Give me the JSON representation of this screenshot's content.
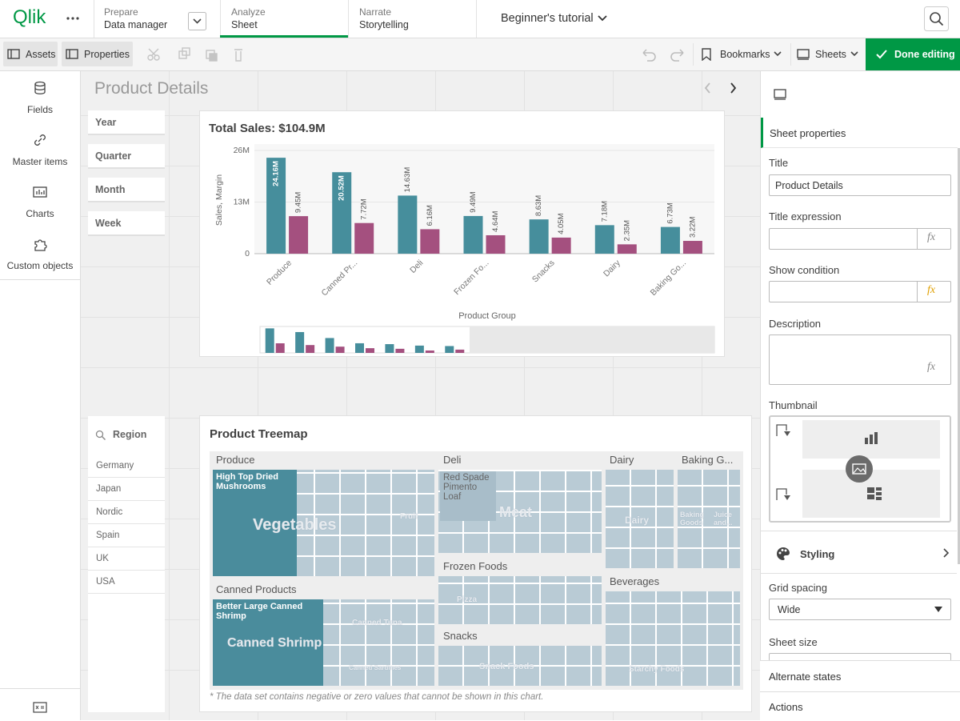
{
  "topbar": {
    "logo": "Qlik",
    "tabs": [
      {
        "label": "Prepare",
        "sub": "Data manager"
      },
      {
        "label": "Analyze",
        "sub": "Sheet"
      },
      {
        "label": "Narrate",
        "sub": "Storytelling"
      }
    ],
    "app_title": "Beginner's tutorial"
  },
  "toolbar": {
    "assets": "Assets",
    "properties": "Properties",
    "bookmarks": "Bookmarks",
    "sheets": "Sheets",
    "done": "Done editing"
  },
  "left_panel": {
    "items": [
      "Fields",
      "Master items",
      "Charts",
      "Custom objects"
    ]
  },
  "sheet": {
    "title": "Product Details",
    "filters": [
      "Year",
      "Quarter",
      "Month",
      "Week"
    ],
    "region": {
      "title": "Region",
      "values": [
        "Germany",
        "Japan",
        "Nordic",
        "Spain",
        "UK",
        "USA"
      ]
    },
    "chart_data": {
      "type": "bar",
      "title": "Total Sales: $104.9M",
      "y_label": "Sales, Margin",
      "x_label": "Product Group",
      "categories": [
        "Produce",
        "Canned Pr...",
        "Deli",
        "Frozen Fo...",
        "Snacks",
        "Dairy",
        "Baking Go..."
      ],
      "series": [
        {
          "color": "#468e9c",
          "values": [
            24160000,
            20520000,
            14630000,
            9490000,
            8630000,
            7180000,
            6730000
          ],
          "value_labels": [
            "24.16M",
            "20.52M",
            "14.63M",
            "9.49M",
            "8.63M",
            "7.18M",
            "6.73M"
          ]
        },
        {
          "color": "#a4507f",
          "values": [
            9450000,
            7720000,
            6160000,
            4640000,
            4050000,
            2350000,
            3220000
          ],
          "value_labels": [
            "9.45M",
            "7.72M",
            "6.16M",
            "4.64M",
            "4.05M",
            "2.35M",
            "3.22M"
          ]
        }
      ],
      "ylim": [
        0,
        26000000
      ],
      "yticks": [
        0,
        {
          "value": 13000000,
          "label": "13M"
        },
        {
          "value": 26000000,
          "label": "26M"
        }
      ],
      "grid": true
    },
    "treemap": {
      "title": "Product Treemap",
      "groups": [
        {
          "name": "Produce",
          "items": [
            "High Top Dried Mushrooms",
            "Vegetables",
            "Fruit"
          ]
        },
        {
          "name": "Deli",
          "items": [
            "Red Spade Pimento Loaf",
            "Meat"
          ]
        },
        {
          "name": "Dairy",
          "items": [
            "Dairy"
          ]
        },
        {
          "name": "Baking G...",
          "items": [
            "Baking Goods",
            "Juice and..."
          ]
        },
        {
          "name": "Canned Products",
          "items": [
            "Better Large Canned Shrimp",
            "Canned Shrimp",
            "Canned Tuna",
            "Canned Sardines"
          ]
        },
        {
          "name": "Frozen Foods",
          "items": [
            "Pizza"
          ]
        },
        {
          "name": "Beverages",
          "items": [
            "Starchy Foods"
          ]
        },
        {
          "name": "Snacks",
          "items": [
            "Snack Foods"
          ]
        }
      ],
      "footnote": "* The data set contains negative or zero values that cannot be shown in this chart."
    }
  },
  "properties": {
    "header": "Sheet properties",
    "expression_icon": "fx",
    "title_label": "Title",
    "title_value": "Product Details",
    "title_expression": "Title expression",
    "show_condition": "Show condition",
    "description": "Description",
    "thumbnail": "Thumbnail",
    "styling": "Styling",
    "grid_spacing": "Grid spacing",
    "grid_spacing_value": "Wide",
    "sheet_size": "Sheet size",
    "alternate_states": "Alternate states",
    "actions": "Actions"
  }
}
